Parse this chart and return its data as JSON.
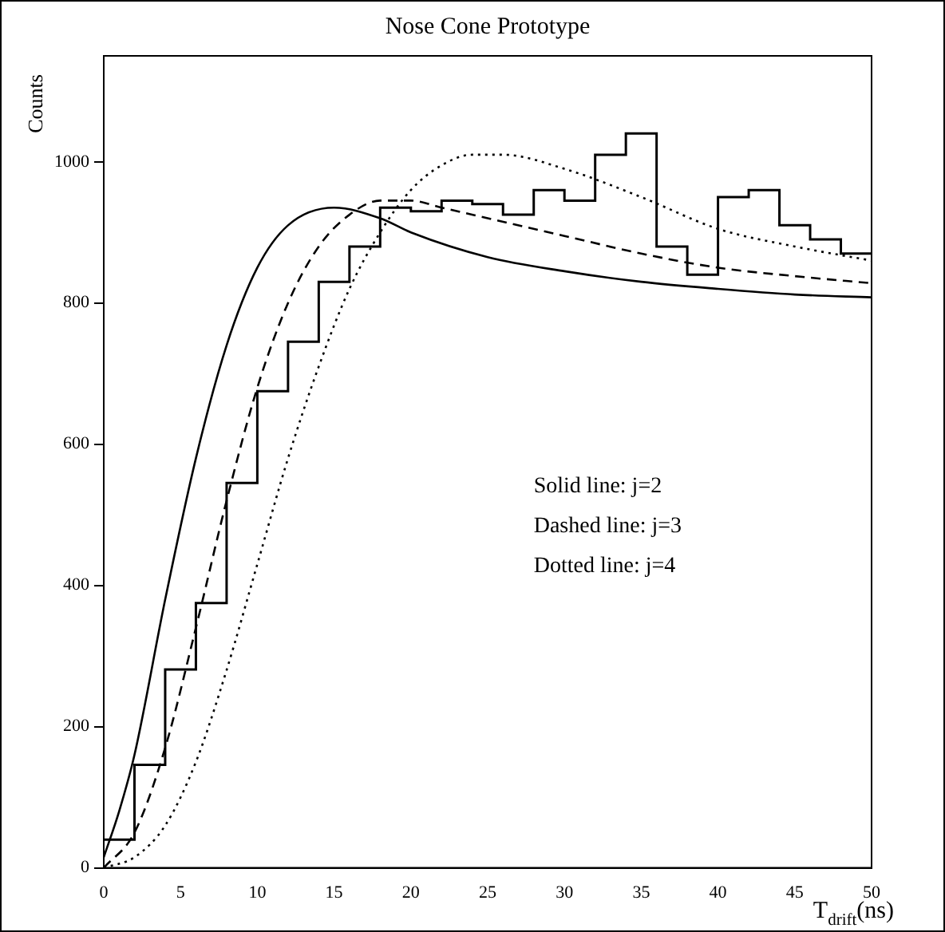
{
  "chart_data": {
    "type": "step",
    "title": "Nose Cone Prototype",
    "xlabel": "T$_{drift}$(ns)",
    "ylabel": "Counts",
    "x": [
      0,
      2,
      4,
      6,
      8,
      10,
      12,
      14,
      16,
      18,
      20,
      22,
      24,
      26,
      28,
      30,
      32,
      34,
      36,
      38,
      40,
      42,
      44,
      46,
      48,
      50
    ],
    "values": [
      40,
      146,
      281,
      375,
      545,
      675,
      745,
      830,
      880,
      935,
      930,
      945,
      940,
      925,
      960,
      945,
      1010,
      1040,
      880,
      840,
      950,
      960,
      910,
      890,
      870,
      870
    ],
    "color": "#000000",
    "series": [
      {
        "type": "line",
        "line_style": "solid",
        "color": "#000000",
        "x": [
          0,
          1,
          2,
          4,
          6,
          8,
          10,
          12,
          15,
          18,
          20,
          25,
          30,
          35,
          40,
          45,
          50
        ],
        "values": [
          15,
          80,
          160,
          380,
          580,
          740,
          850,
          910,
          935,
          920,
          900,
          865,
          845,
          830,
          820,
          812,
          808
        ]
      },
      {
        "type": "line",
        "line_style": "dashed",
        "color": "#000000",
        "x": [
          0,
          2,
          4,
          6,
          8,
          10,
          12,
          14,
          16,
          18,
          20,
          22,
          25,
          30,
          35,
          40,
          45,
          50
        ],
        "values": [
          0,
          50,
          170,
          340,
          520,
          680,
          800,
          880,
          925,
          945,
          945,
          935,
          920,
          895,
          870,
          850,
          838,
          828
        ]
      },
      {
        "type": "line",
        "line_style": "dotted",
        "color": "#000000",
        "x": [
          0,
          2,
          4,
          6,
          8,
          10,
          12,
          14,
          16,
          18,
          20,
          22,
          24,
          26,
          30,
          35,
          40,
          45,
          50
        ],
        "values": [
          0,
          15,
          60,
          150,
          280,
          430,
          580,
          710,
          820,
          900,
          960,
          995,
          1010,
          1010,
          990,
          950,
          905,
          880,
          860
        ]
      }
    ],
    "xlim": [
      0,
      50
    ],
    "xticks": [
      0,
      5,
      10,
      15,
      20,
      25,
      30,
      35,
      40,
      45,
      50
    ],
    "ylim": [
      0,
      1150
    ],
    "yticks": [
      0,
      200,
      400,
      600,
      800,
      1000
    ],
    "grid": false,
    "legend": false,
    "marker": "none",
    "annotations": [
      "Solid line: j=2",
      "Dashed line: j=3",
      "Dotted line: j=4"
    ]
  }
}
